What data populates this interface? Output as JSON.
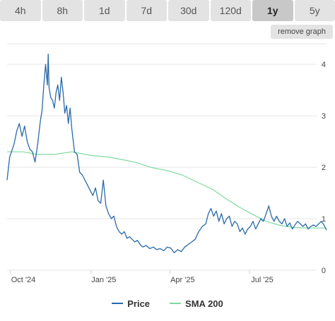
{
  "tabs": [
    "4h",
    "8h",
    "1d",
    "7d",
    "30d",
    "120d",
    "1y",
    "5y"
  ],
  "active_tab": "1y",
  "remove_graph_label": "remove graph",
  "legend": {
    "price_label": "Price",
    "sma_label": "SMA 200"
  },
  "colors": {
    "price": "#2a6aa8",
    "sma": "#7fd9a0",
    "grid": "#e6e6e6",
    "axis_text": "#444444"
  },
  "chart_data": {
    "type": "line",
    "xlabel": "",
    "ylabel": "",
    "ylim": [
      0,
      4.4
    ],
    "yticks": [
      "0",
      "1",
      "2",
      "3",
      "4"
    ],
    "xticks": [
      "Oct '24",
      "Jan '25",
      "Apr '25",
      "Jul '25"
    ],
    "xtick_dates": [
      "2024-10-01",
      "2025-01-01",
      "2025-04-01",
      "2025-07-01"
    ],
    "x_start": "2024-09-27",
    "x_end": "2025-09-27",
    "grid": true,
    "legend_position": "bottom",
    "series": [
      {
        "name": "Price",
        "color": "#2a6aa8",
        "x": [
          "2024-09-27",
          "2024-09-30",
          "2024-10-02",
          "2024-10-05",
          "2024-10-08",
          "2024-10-11",
          "2024-10-14",
          "2024-10-17",
          "2024-10-20",
          "2024-10-23",
          "2024-10-26",
          "2024-10-29",
          "2024-11-01",
          "2024-11-04",
          "2024-11-06",
          "2024-11-08",
          "2024-11-10",
          "2024-11-12",
          "2024-11-13",
          "2024-11-14",
          "2024-11-16",
          "2024-11-18",
          "2024-11-20",
          "2024-11-22",
          "2024-11-24",
          "2024-11-26",
          "2024-11-28",
          "2024-11-30",
          "2024-12-02",
          "2024-12-04",
          "2024-12-06",
          "2024-12-08",
          "2024-12-10",
          "2024-12-13",
          "2024-12-16",
          "2024-12-19",
          "2024-12-22",
          "2024-12-25",
          "2024-12-28",
          "2024-12-31",
          "2025-01-03",
          "2025-01-06",
          "2025-01-09",
          "2025-01-12",
          "2025-01-15",
          "2025-01-18",
          "2025-01-21",
          "2025-01-24",
          "2025-01-27",
          "2025-01-30",
          "2025-02-02",
          "2025-02-05",
          "2025-02-08",
          "2025-02-11",
          "2025-02-14",
          "2025-02-17",
          "2025-02-20",
          "2025-02-23",
          "2025-02-26",
          "2025-03-01",
          "2025-03-05",
          "2025-03-09",
          "2025-03-13",
          "2025-03-17",
          "2025-03-21",
          "2025-03-25",
          "2025-03-29",
          "2025-04-02",
          "2025-04-06",
          "2025-04-10",
          "2025-04-14",
          "2025-04-18",
          "2025-04-22",
          "2025-04-26",
          "2025-04-30",
          "2025-05-04",
          "2025-05-08",
          "2025-05-12",
          "2025-05-15",
          "2025-05-18",
          "2025-05-21",
          "2025-05-24",
          "2025-05-27",
          "2025-05-30",
          "2025-06-02",
          "2025-06-05",
          "2025-06-08",
          "2025-06-11",
          "2025-06-14",
          "2025-06-17",
          "2025-06-20",
          "2025-06-23",
          "2025-06-26",
          "2025-06-29",
          "2025-07-02",
          "2025-07-05",
          "2025-07-08",
          "2025-07-11",
          "2025-07-14",
          "2025-07-17",
          "2025-07-20",
          "2025-07-23",
          "2025-07-26",
          "2025-07-29",
          "2025-08-01",
          "2025-08-04",
          "2025-08-07",
          "2025-08-10",
          "2025-08-13",
          "2025-08-16",
          "2025-08-19",
          "2025-08-22",
          "2025-08-25",
          "2025-08-28",
          "2025-08-31",
          "2025-09-03",
          "2025-09-06",
          "2025-09-09",
          "2025-09-12",
          "2025-09-15",
          "2025-09-18",
          "2025-09-21",
          "2025-09-24",
          "2025-09-27"
        ],
        "y": [
          1.75,
          2.2,
          2.3,
          2.45,
          2.7,
          2.85,
          2.6,
          2.8,
          2.5,
          2.35,
          2.3,
          2.1,
          2.45,
          2.9,
          3.1,
          3.6,
          4.0,
          3.6,
          4.2,
          3.55,
          3.35,
          3.3,
          3.15,
          3.45,
          3.6,
          3.3,
          3.75,
          3.45,
          3.05,
          3.2,
          2.85,
          3.15,
          2.75,
          2.3,
          2.25,
          1.9,
          1.85,
          1.75,
          1.65,
          1.55,
          1.45,
          1.6,
          1.35,
          1.3,
          1.75,
          1.25,
          1.1,
          1.0,
          1.05,
          0.85,
          0.75,
          0.7,
          0.75,
          0.62,
          0.65,
          0.6,
          0.55,
          0.58,
          0.5,
          0.45,
          0.48,
          0.42,
          0.45,
          0.4,
          0.42,
          0.38,
          0.45,
          0.43,
          0.34,
          0.4,
          0.36,
          0.45,
          0.5,
          0.55,
          0.6,
          0.75,
          0.85,
          0.9,
          1.1,
          1.2,
          1.05,
          1.15,
          0.95,
          1.1,
          0.9,
          1.0,
          1.05,
          0.85,
          0.95,
          0.9,
          0.75,
          0.82,
          0.7,
          0.8,
          0.85,
          0.95,
          0.8,
          0.9,
          1.0,
          0.95,
          1.1,
          1.25,
          1.05,
          0.95,
          1.05,
          0.95,
          0.9,
          1.0,
          0.85,
          0.92,
          0.8,
          0.88,
          0.95,
          0.9,
          0.85,
          0.9,
          0.8,
          0.85,
          0.88,
          0.85,
          0.9,
          0.95,
          0.88,
          0.78
        ]
      },
      {
        "name": "SMA 200",
        "color": "#7fd9a0",
        "x": [
          "2024-09-27",
          "2024-10-15",
          "2024-11-01",
          "2024-11-20",
          "2024-12-10",
          "2025-01-01",
          "2025-01-20",
          "2025-02-05",
          "2025-02-20",
          "2025-03-10",
          "2025-03-30",
          "2025-04-15",
          "2025-05-01",
          "2025-05-20",
          "2025-06-05",
          "2025-06-20",
          "2025-07-05",
          "2025-07-20",
          "2025-08-05",
          "2025-08-20",
          "2025-09-05",
          "2025-09-27"
        ],
        "y": [
          2.3,
          2.3,
          2.25,
          2.25,
          2.3,
          2.23,
          2.2,
          2.15,
          2.1,
          2.0,
          1.93,
          1.85,
          1.72,
          1.57,
          1.38,
          1.22,
          1.08,
          0.95,
          0.87,
          0.83,
          0.82,
          0.82
        ]
      }
    ]
  }
}
